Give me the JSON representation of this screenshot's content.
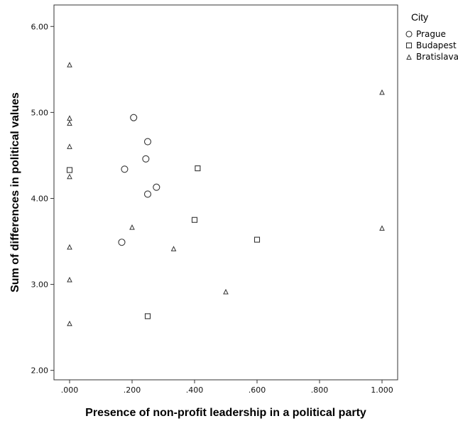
{
  "chart_data": {
    "type": "scatter",
    "xlabel": "Presence of non-profit leadership in a political party",
    "ylabel": "Sum of differences in political values",
    "xlim": [
      -0.05,
      1.05
    ],
    "ylim": [
      1.89,
      6.25
    ],
    "x_ticks": [
      0.0,
      0.2,
      0.4,
      0.6,
      0.8,
      1.0
    ],
    "x_tick_labels": [
      ".000",
      ".200",
      ".400",
      ".600",
      ".800",
      "1.000"
    ],
    "y_ticks": [
      2.0,
      3.0,
      4.0,
      5.0,
      6.0
    ],
    "y_tick_labels": [
      "2.00",
      "3.00",
      "4.00",
      "5.00",
      "6.00"
    ],
    "grid": false,
    "legend": {
      "title": "City",
      "position": "right-outside-top"
    },
    "series": [
      {
        "name": "Prague",
        "marker": "circle",
        "points": [
          {
            "x": 0.205,
            "y": 4.94
          },
          {
            "x": 0.25,
            "y": 4.66
          },
          {
            "x": 0.244,
            "y": 4.46
          },
          {
            "x": 0.176,
            "y": 4.34
          },
          {
            "x": 0.278,
            "y": 4.13
          },
          {
            "x": 0.25,
            "y": 4.05
          },
          {
            "x": 0.167,
            "y": 3.49
          }
        ]
      },
      {
        "name": "Budapest",
        "marker": "square",
        "points": [
          {
            "x": 0.0,
            "y": 4.33
          },
          {
            "x": 0.41,
            "y": 4.35
          },
          {
            "x": 0.4,
            "y": 3.75
          },
          {
            "x": 0.6,
            "y": 3.52
          },
          {
            "x": 0.25,
            "y": 2.63
          }
        ]
      },
      {
        "name": "Bratislava",
        "marker": "triangle",
        "points": [
          {
            "x": 0.0,
            "y": 5.55
          },
          {
            "x": 0.0,
            "y": 4.93
          },
          {
            "x": 0.0,
            "y": 4.87
          },
          {
            "x": 0.0,
            "y": 4.6
          },
          {
            "x": 0.0,
            "y": 4.25
          },
          {
            "x": 0.0,
            "y": 3.43
          },
          {
            "x": 0.0,
            "y": 3.05
          },
          {
            "x": 0.0,
            "y": 2.54
          },
          {
            "x": 0.2,
            "y": 3.66
          },
          {
            "x": 0.333,
            "y": 3.41
          },
          {
            "x": 0.5,
            "y": 2.91
          },
          {
            "x": 1.0,
            "y": 5.23
          },
          {
            "x": 1.0,
            "y": 3.65
          }
        ]
      }
    ]
  }
}
